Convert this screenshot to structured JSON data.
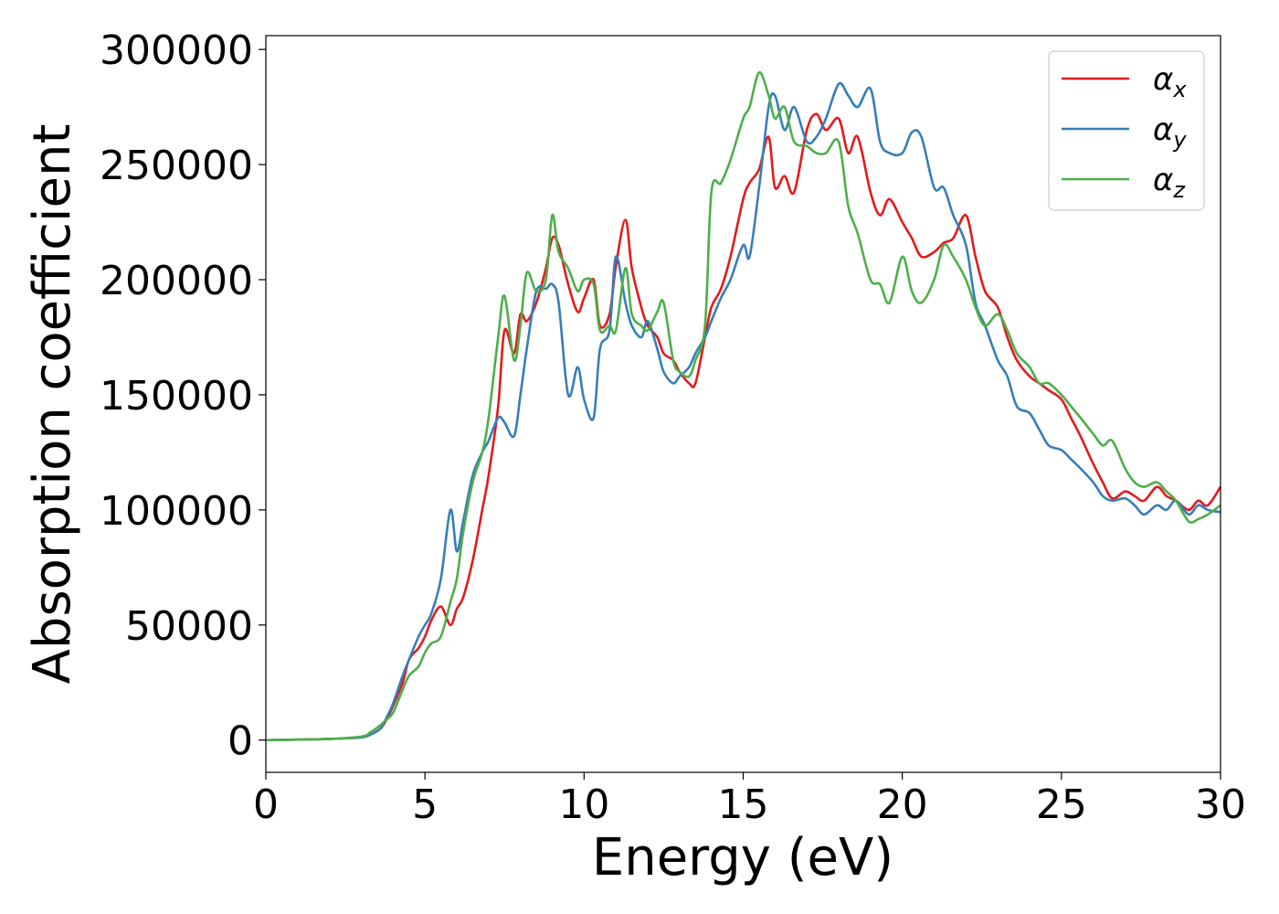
{
  "chart_data": {
    "type": "line",
    "title": "",
    "xlabel": "Energy (eV)",
    "ylabel": "Absorption coefficient",
    "xlim": [
      0,
      30
    ],
    "ylim": [
      -14000,
      306000
    ],
    "xticks": [
      0,
      5,
      10,
      15,
      20,
      25,
      30
    ],
    "yticks": [
      0,
      50000,
      100000,
      150000,
      200000,
      250000,
      300000
    ],
    "xtick_labels": [
      "0",
      "5",
      "10",
      "15",
      "20",
      "25",
      "30"
    ],
    "ytick_labels": [
      "0",
      "50000",
      "100000",
      "150000",
      "200000",
      "250000",
      "300000"
    ],
    "grid": false,
    "legend_position": "top-right",
    "series": [
      {
        "name": "α",
        "subscript": "x",
        "color": "#e41a1c",
        "x": [
          0,
          1,
          2,
          3,
          3.3,
          3.6,
          3.8,
          4.0,
          4.3,
          4.5,
          4.8,
          5.0,
          5.2,
          5.5,
          5.8,
          6.0,
          6.2,
          6.5,
          6.8,
          7.0,
          7.3,
          7.5,
          7.8,
          8.0,
          8.2,
          8.5,
          8.8,
          9.0,
          9.2,
          9.5,
          9.8,
          10.0,
          10.3,
          10.5,
          10.8,
          11.0,
          11.3,
          11.5,
          11.8,
          12.0,
          12.3,
          12.5,
          12.8,
          13.0,
          13.3,
          13.5,
          13.8,
          14.0,
          14.3,
          14.6,
          15.0,
          15.2,
          15.5,
          15.8,
          16.0,
          16.3,
          16.6,
          17.0,
          17.3,
          17.6,
          18.0,
          18.3,
          18.6,
          19.0,
          19.3,
          19.6,
          20.0,
          20.3,
          20.6,
          21.0,
          21.3,
          21.6,
          22.0,
          22.3,
          22.6,
          23.0,
          23.3,
          23.6,
          24.0,
          24.3,
          24.6,
          25.0,
          25.3,
          25.6,
          26.0,
          26.3,
          26.6,
          27.0,
          27.3,
          27.6,
          28.0,
          28.3,
          28.6,
          29.0,
          29.3,
          29.6,
          30.0
        ],
        "y": [
          0,
          200,
          500,
          1200,
          2500,
          5000,
          9000,
          15000,
          25000,
          35000,
          40000,
          45000,
          52000,
          58000,
          50000,
          57000,
          62000,
          78000,
          100000,
          115000,
          145000,
          178000,
          168000,
          185000,
          182000,
          190000,
          205000,
          218000,
          215000,
          198000,
          186000,
          192000,
          200000,
          180000,
          185000,
          206000,
          226000,
          205000,
          188000,
          180000,
          175000,
          168000,
          165000,
          160000,
          155000,
          155000,
          175000,
          188000,
          196000,
          210000,
          235000,
          242000,
          248000,
          262000,
          240000,
          245000,
          238000,
          265000,
          272000,
          265000,
          270000,
          255000,
          262000,
          238000,
          228000,
          235000,
          225000,
          218000,
          210000,
          212000,
          216000,
          218000,
          228000,
          210000,
          195000,
          188000,
          175000,
          165000,
          158000,
          155000,
          152000,
          148000,
          140000,
          132000,
          120000,
          112000,
          105000,
          108000,
          106000,
          104000,
          110000,
          106000,
          104000,
          100000,
          104000,
          102000,
          110000
        ]
      },
      {
        "name": "α",
        "subscript": "y",
        "color": "#377eb8",
        "x": [
          0,
          1,
          2,
          3,
          3.3,
          3.6,
          3.8,
          4.0,
          4.3,
          4.5,
          4.8,
          5.0,
          5.2,
          5.5,
          5.8,
          6.0,
          6.2,
          6.5,
          6.8,
          7.0,
          7.3,
          7.5,
          7.8,
          8.0,
          8.2,
          8.5,
          8.8,
          9.0,
          9.2,
          9.5,
          9.8,
          10.0,
          10.3,
          10.5,
          10.8,
          11.0,
          11.3,
          11.5,
          11.8,
          12.0,
          12.3,
          12.5,
          12.8,
          13.0,
          13.3,
          13.5,
          13.8,
          14.0,
          14.3,
          14.6,
          15.0,
          15.2,
          15.5,
          15.8,
          16.0,
          16.3,
          16.6,
          17.0,
          17.3,
          17.6,
          18.0,
          18.3,
          18.6,
          19.0,
          19.3,
          19.6,
          20.0,
          20.3,
          20.6,
          21.0,
          21.3,
          21.6,
          22.0,
          22.3,
          22.6,
          23.0,
          23.3,
          23.6,
          24.0,
          24.3,
          24.6,
          25.0,
          25.3,
          25.6,
          26.0,
          26.3,
          26.6,
          27.0,
          27.3,
          27.6,
          28.0,
          28.3,
          28.6,
          29.0,
          29.3,
          29.6,
          30.0
        ],
        "y": [
          0,
          200,
          500,
          1200,
          2500,
          5000,
          10000,
          16000,
          28000,
          35000,
          45000,
          50000,
          55000,
          70000,
          100000,
          82000,
          95000,
          115000,
          125000,
          130000,
          140000,
          138000,
          132000,
          150000,
          170000,
          195000,
          196000,
          198000,
          190000,
          150000,
          162000,
          148000,
          140000,
          170000,
          178000,
          210000,
          190000,
          180000,
          175000,
          182000,
          170000,
          160000,
          155000,
          158000,
          162000,
          168000,
          175000,
          182000,
          192000,
          200000,
          215000,
          210000,
          240000,
          275000,
          280000,
          265000,
          275000,
          260000,
          262000,
          270000,
          285000,
          280000,
          275000,
          283000,
          260000,
          255000,
          255000,
          264000,
          262000,
          240000,
          240000,
          228000,
          215000,
          190000,
          180000,
          165000,
          158000,
          145000,
          142000,
          135000,
          128000,
          126000,
          122000,
          118000,
          112000,
          106000,
          104000,
          105000,
          102000,
          98000,
          102000,
          100000,
          104000,
          98000,
          102000,
          100000,
          99000
        ]
      },
      {
        "name": "α",
        "subscript": "z",
        "color": "#4daf4a",
        "x": [
          0,
          1,
          2,
          3,
          3.3,
          3.6,
          3.8,
          4.0,
          4.3,
          4.5,
          4.8,
          5.0,
          5.2,
          5.5,
          5.8,
          6.0,
          6.2,
          6.5,
          6.8,
          7.0,
          7.3,
          7.5,
          7.8,
          8.0,
          8.2,
          8.5,
          8.8,
          9.0,
          9.2,
          9.5,
          9.8,
          10.0,
          10.3,
          10.5,
          10.8,
          11.0,
          11.3,
          11.5,
          11.8,
          12.0,
          12.3,
          12.5,
          12.8,
          13.0,
          13.3,
          13.5,
          13.8,
          14.0,
          14.3,
          14.6,
          15.0,
          15.2,
          15.5,
          15.8,
          16.0,
          16.3,
          16.6,
          17.0,
          17.3,
          17.6,
          18.0,
          18.3,
          18.6,
          19.0,
          19.3,
          19.6,
          20.0,
          20.3,
          20.6,
          21.0,
          21.3,
          21.6,
          22.0,
          22.3,
          22.6,
          23.0,
          23.3,
          23.6,
          24.0,
          24.3,
          24.6,
          25.0,
          25.3,
          25.6,
          26.0,
          26.3,
          26.6,
          27.0,
          27.3,
          27.6,
          28.0,
          28.3,
          28.6,
          29.0,
          29.3,
          29.6,
          30.0
        ],
        "y": [
          0,
          200,
          500,
          1500,
          3500,
          6500,
          9000,
          12000,
          22000,
          28000,
          32000,
          38000,
          42000,
          45000,
          60000,
          70000,
          90000,
          112000,
          125000,
          140000,
          175000,
          193000,
          165000,
          180000,
          203000,
          195000,
          200000,
          228000,
          212000,
          205000,
          195000,
          200000,
          198000,
          178000,
          180000,
          178000,
          205000,
          185000,
          180000,
          178000,
          186000,
          190000,
          165000,
          160000,
          158000,
          165000,
          180000,
          238000,
          242000,
          252000,
          270000,
          275000,
          290000,
          280000,
          270000,
          275000,
          260000,
          258000,
          255000,
          255000,
          260000,
          232000,
          220000,
          200000,
          198000,
          190000,
          210000,
          195000,
          190000,
          200000,
          215000,
          210000,
          200000,
          188000,
          180000,
          185000,
          178000,
          168000,
          162000,
          155000,
          155000,
          150000,
          145000,
          140000,
          133000,
          128000,
          130000,
          118000,
          112000,
          110000,
          112000,
          108000,
          104000,
          95000,
          96000,
          98000,
          102000
        ]
      }
    ]
  }
}
